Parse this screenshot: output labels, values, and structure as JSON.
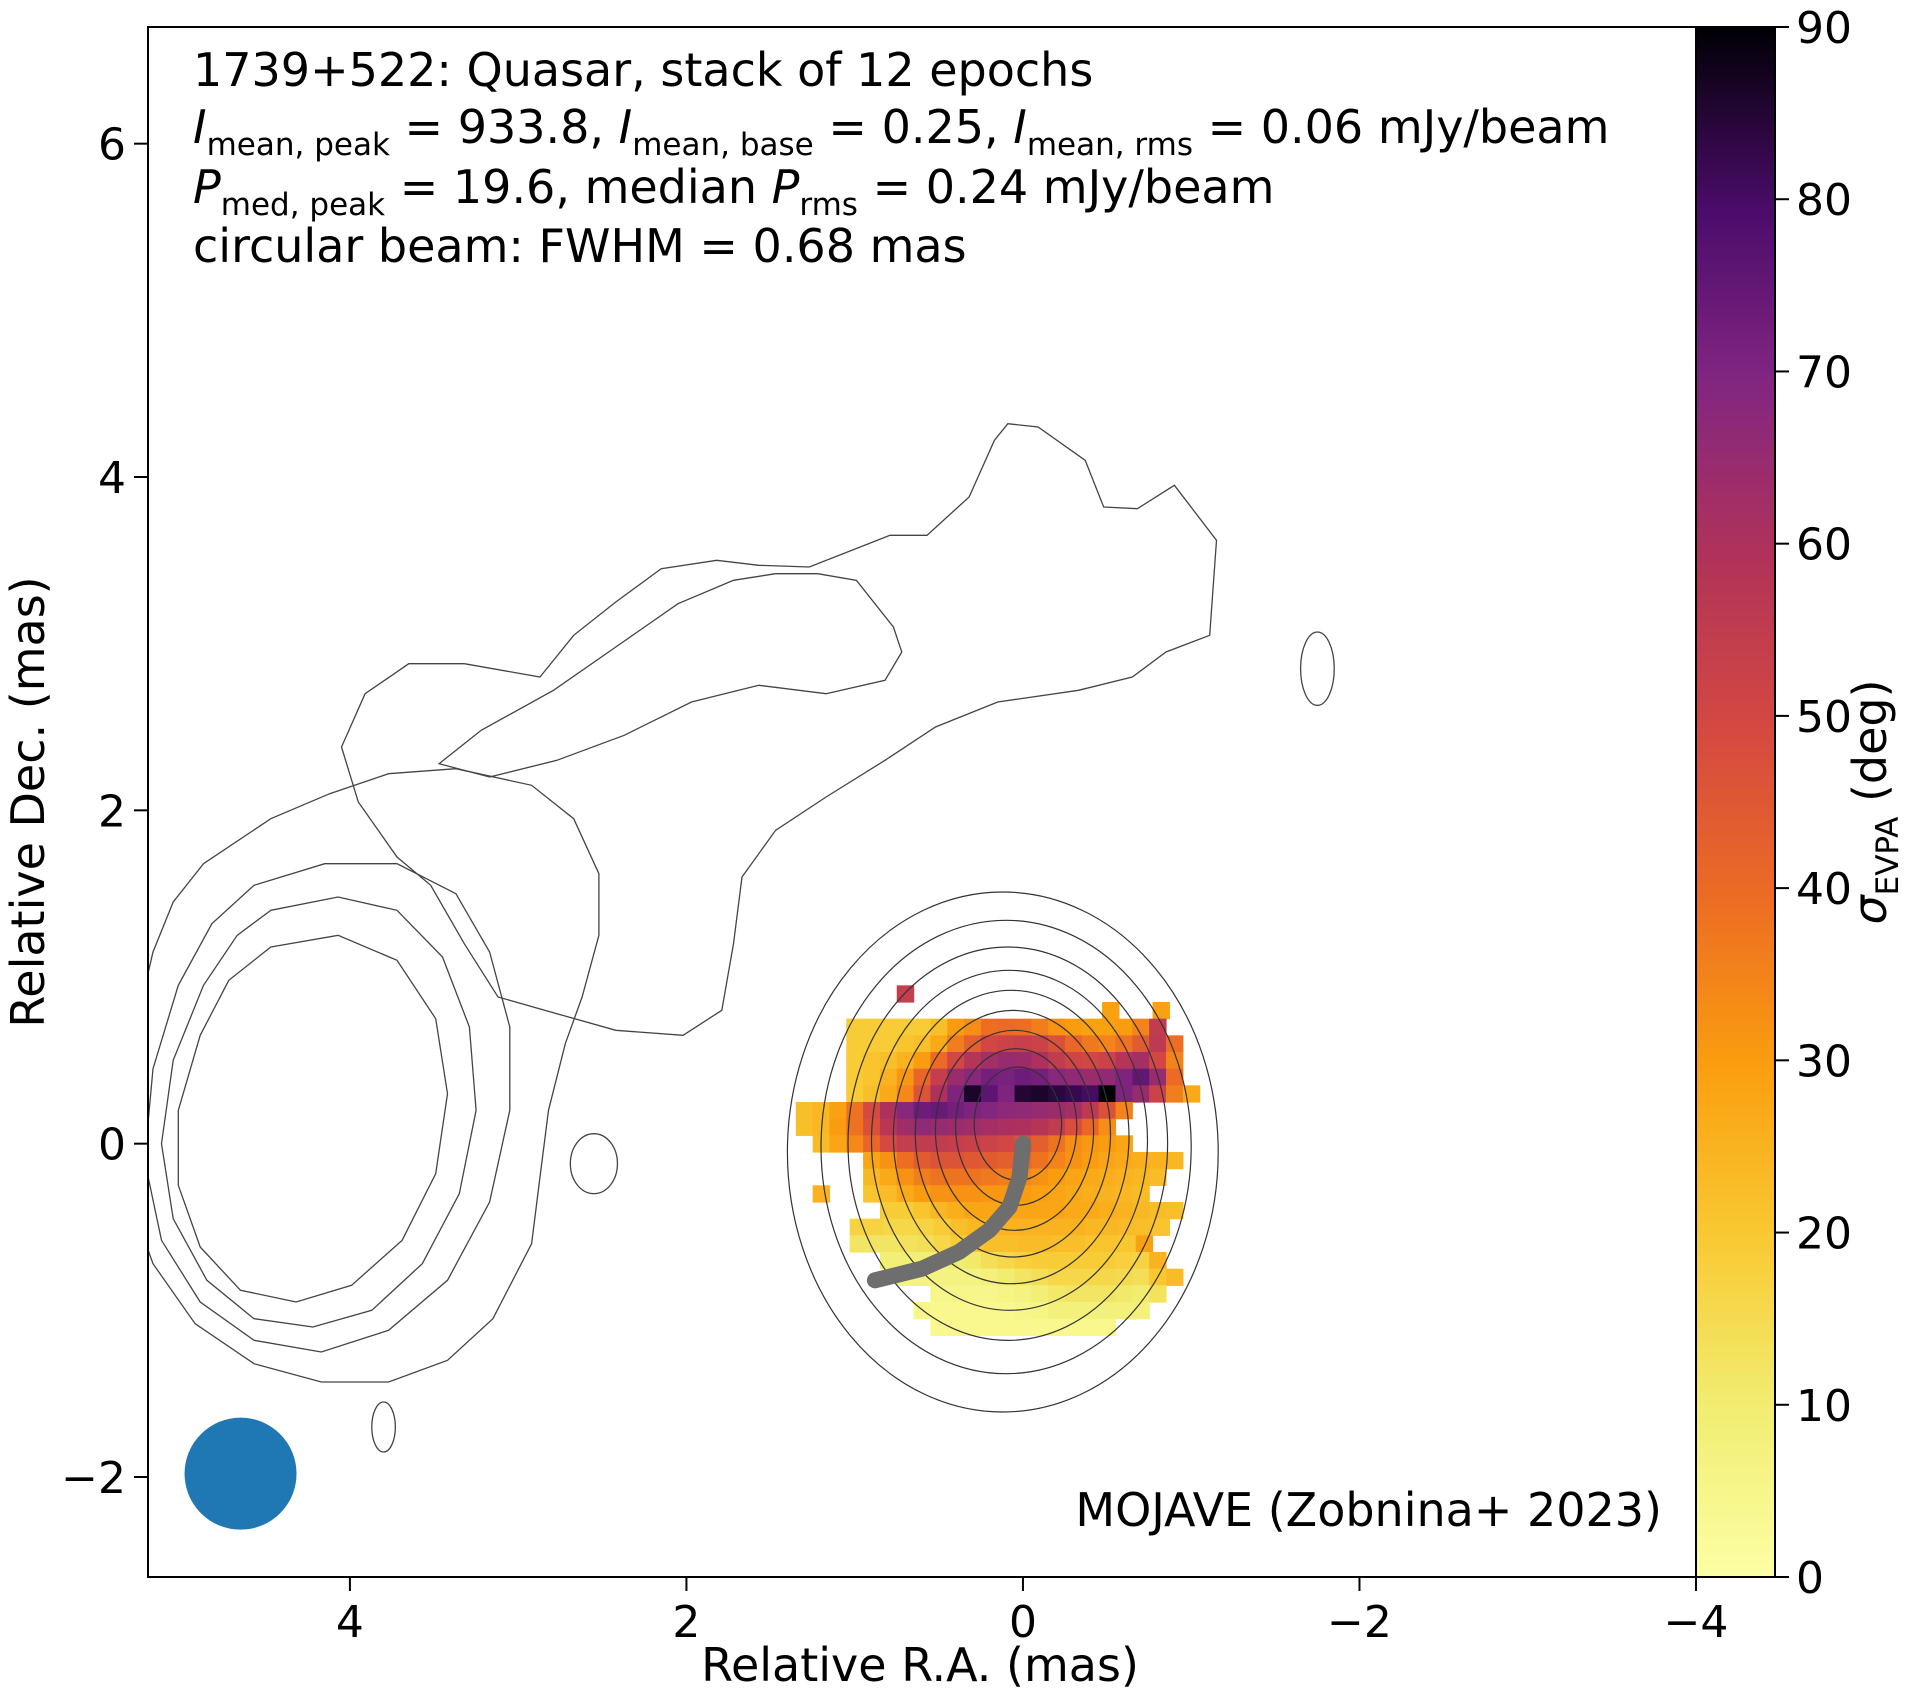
{
  "chart_data": {
    "type": "heatmap",
    "info_lines": [
      "1739+522: Quasar, stack of 12 epochs",
      "I_mean,peak = 933.8, I_mean,base = 0.25, I_mean,rms = 0.06 mJy/beam",
      "P_med,peak = 19.6, median P_rms = 0.24 mJy/beam",
      "circular beam: FWHM = 0.68 mas"
    ],
    "stats": {
      "source": "1739+522",
      "classification": "Quasar",
      "epochs": 12,
      "I_mean_peak": 933.8,
      "I_mean_base": 0.25,
      "I_mean_rms": 0.06,
      "P_med_peak": 19.6,
      "P_rms_median": 0.24,
      "beam_fwhm_mas": 0.68,
      "flux_unit": "mJy/beam"
    },
    "credit": "MOJAVE (Zobnina+ 2023)",
    "xlabel": "Relative R.A. (mas)",
    "ylabel": "Relative Dec. (mas)",
    "xlim": [
      5.2,
      -4.0
    ],
    "ylim": [
      -2.6,
      6.7
    ],
    "xticks": [
      4,
      2,
      0,
      -2,
      -4
    ],
    "yticks": [
      -2,
      0,
      2,
      4,
      6
    ],
    "colorbar": {
      "label": "σ_EVPA (deg)",
      "range": [
        0,
        90
      ],
      "ticks": [
        0,
        10,
        20,
        30,
        40,
        50,
        60,
        70,
        80,
        90
      ],
      "colormap": "inferno_r"
    },
    "beam": {
      "x": 4.65,
      "y": -1.98,
      "fwhm": 0.68,
      "color": "#1f77b4"
    },
    "ridge_line": {
      "color": "#6e6e6e",
      "points": [
        [
          0.0,
          0.0
        ],
        [
          0.02,
          -0.2
        ],
        [
          0.08,
          -0.38
        ],
        [
          0.2,
          -0.52
        ],
        [
          0.38,
          -0.65
        ],
        [
          0.6,
          -0.75
        ],
        [
          0.88,
          -0.82
        ]
      ]
    },
    "contours": [
      {
        "level": 1,
        "points": [
          [
            2.9,
            2.8
          ],
          [
            3.1,
            3.05
          ],
          [
            3.35,
            3.25
          ],
          [
            3.62,
            3.45
          ],
          [
            3.95,
            3.5
          ],
          [
            4.2,
            3.47
          ],
          [
            4.5,
            3.46
          ],
          [
            4.98,
            3.65
          ],
          [
            5.2,
            3.65
          ],
          [
            5.45,
            3.88
          ],
          [
            5.6,
            4.22
          ],
          [
            5.68,
            4.32
          ],
          [
            5.86,
            4.3
          ],
          [
            6.14,
            4.1
          ],
          [
            6.25,
            3.82
          ],
          [
            6.45,
            3.81
          ],
          [
            6.67,
            3.95
          ],
          [
            6.92,
            3.62
          ],
          [
            6.88,
            3.05
          ],
          [
            6.62,
            2.95
          ],
          [
            6.42,
            2.8
          ],
          [
            6.1,
            2.72
          ],
          [
            5.62,
            2.65
          ],
          [
            5.25,
            2.5
          ],
          [
            4.95,
            2.3
          ],
          [
            4.6,
            2.08
          ],
          [
            4.3,
            1.88
          ],
          [
            4.1,
            1.6
          ],
          [
            4.05,
            1.2
          ],
          [
            3.98,
            0.8
          ],
          [
            3.75,
            0.65
          ],
          [
            3.35,
            0.68
          ],
          [
            3.0,
            0.78
          ],
          [
            2.65,
            0.88
          ],
          [
            2.45,
            1.2
          ],
          [
            2.25,
            1.55
          ],
          [
            2.05,
            1.72
          ],
          [
            1.82,
            2.05
          ],
          [
            1.72,
            2.38
          ],
          [
            1.86,
            2.7
          ],
          [
            2.12,
            2.88
          ],
          [
            2.45,
            2.88
          ],
          [
            2.9,
            2.8
          ]
        ]
      },
      {
        "level": 2,
        "points": [
          [
            2.3,
            2.28
          ],
          [
            2.55,
            2.48
          ],
          [
            2.98,
            2.72
          ],
          [
            3.35,
            2.98
          ],
          [
            3.72,
            3.24
          ],
          [
            4.05,
            3.38
          ],
          [
            4.3,
            3.42
          ],
          [
            4.55,
            3.42
          ],
          [
            4.78,
            3.38
          ],
          [
            5.0,
            3.1
          ],
          [
            5.05,
            2.95
          ],
          [
            4.95,
            2.78
          ],
          [
            4.6,
            2.7
          ],
          [
            4.2,
            2.75
          ],
          [
            3.8,
            2.65
          ],
          [
            3.4,
            2.45
          ],
          [
            3.0,
            2.3
          ],
          [
            2.6,
            2.2
          ],
          [
            2.3,
            2.28
          ]
        ]
      },
      {
        "level": 2,
        "points": [
          [
            0.9,
            1.68
          ],
          [
            1.3,
            1.95
          ],
          [
            1.65,
            2.1
          ],
          [
            2.0,
            2.22
          ],
          [
            2.4,
            2.25
          ],
          [
            2.85,
            2.15
          ],
          [
            3.1,
            1.95
          ],
          [
            3.25,
            1.62
          ],
          [
            3.25,
            1.25
          ],
          [
            3.15,
            0.88
          ],
          [
            3.05,
            0.6
          ],
          [
            2.95,
            0.2
          ],
          [
            2.9,
            -0.2
          ],
          [
            2.85,
            -0.6
          ],
          [
            2.62,
            -1.05
          ],
          [
            2.35,
            -1.3
          ],
          [
            2.0,
            -1.43
          ],
          [
            1.6,
            -1.43
          ],
          [
            1.2,
            -1.32
          ],
          [
            0.85,
            -1.08
          ],
          [
            0.6,
            -0.72
          ],
          [
            0.45,
            -0.3
          ],
          [
            0.42,
            0.2
          ],
          [
            0.5,
            0.72
          ],
          [
            0.6,
            1.15
          ],
          [
            0.72,
            1.45
          ],
          [
            0.9,
            1.68
          ]
        ]
      },
      {
        "level": 3,
        "points": [
          [
            1.2,
            1.55
          ],
          [
            1.62,
            1.68
          ],
          [
            2.05,
            1.68
          ],
          [
            2.4,
            1.5
          ],
          [
            2.6,
            1.15
          ],
          [
            2.72,
            0.7
          ],
          [
            2.72,
            0.2
          ],
          [
            2.6,
            -0.35
          ],
          [
            2.35,
            -0.82
          ],
          [
            2.0,
            -1.12
          ],
          [
            1.6,
            -1.25
          ],
          [
            1.2,
            -1.18
          ],
          [
            0.88,
            -0.95
          ],
          [
            0.65,
            -0.58
          ],
          [
            0.55,
            -0.1
          ],
          [
            0.6,
            0.45
          ],
          [
            0.75,
            0.95
          ],
          [
            0.95,
            1.32
          ],
          [
            1.2,
            1.55
          ]
        ]
      },
      {
        "level": 4,
        "points": [
          [
            1.3,
            1.4
          ],
          [
            1.7,
            1.48
          ],
          [
            2.05,
            1.4
          ],
          [
            2.32,
            1.12
          ],
          [
            2.48,
            0.7
          ],
          [
            2.52,
            0.2
          ],
          [
            2.42,
            -0.3
          ],
          [
            2.2,
            -0.72
          ],
          [
            1.9,
            -1.0
          ],
          [
            1.55,
            -1.1
          ],
          [
            1.2,
            -1.05
          ],
          [
            0.92,
            -0.82
          ],
          [
            0.72,
            -0.45
          ],
          [
            0.65,
            0.0
          ],
          [
            0.72,
            0.5
          ],
          [
            0.9,
            0.95
          ],
          [
            1.1,
            1.25
          ],
          [
            1.3,
            1.4
          ]
        ]
      },
      {
        "level": 5,
        "points": [
          [
            1.3,
            1.18
          ],
          [
            1.7,
            1.25
          ],
          [
            2.05,
            1.1
          ],
          [
            2.28,
            0.75
          ],
          [
            2.35,
            0.3
          ],
          [
            2.28,
            -0.18
          ],
          [
            2.08,
            -0.58
          ],
          [
            1.78,
            -0.85
          ],
          [
            1.45,
            -0.95
          ],
          [
            1.12,
            -0.88
          ],
          [
            0.88,
            -0.62
          ],
          [
            0.75,
            -0.25
          ],
          [
            0.75,
            0.2
          ],
          [
            0.88,
            0.65
          ],
          [
            1.05,
            0.98
          ],
          [
            1.3,
            1.18
          ]
        ]
      }
    ],
    "contour_spans": [
      {
        "rx": 1.78,
        "ry": 2.55,
        "cx": 1.6,
        "cy": 0.55
      },
      {
        "rx": 1.48,
        "ry": 2.05,
        "cx": 1.55,
        "cy": 0.42
      }
    ],
    "contour_rings": [
      {
        "cx": 0.12,
        "cy": -0.05,
        "rx": 1.28,
        "ry": 1.56
      },
      {
        "cx": 0.1,
        "cy": -0.02,
        "rx": 1.1,
        "ry": 1.36
      },
      {
        "cx": 0.09,
        "cy": 0.0,
        "rx": 0.95,
        "ry": 1.18
      },
      {
        "cx": 0.08,
        "cy": 0.02,
        "rx": 0.82,
        "ry": 1.02
      },
      {
        "cx": 0.07,
        "cy": 0.04,
        "rx": 0.7,
        "ry": 0.88
      },
      {
        "cx": 0.06,
        "cy": 0.06,
        "rx": 0.58,
        "ry": 0.74
      },
      {
        "cx": 0.05,
        "cy": 0.08,
        "rx": 0.47,
        "ry": 0.6
      },
      {
        "cx": 0.04,
        "cy": 0.1,
        "rx": 0.36,
        "ry": 0.47
      },
      {
        "cx": 0.03,
        "cy": 0.12,
        "rx": 0.26,
        "ry": 0.34
      }
    ],
    "pixel_size_mas": 0.1,
    "pixel_rows": [
      {
        "y": 0.9,
        "x_start": 1.0,
        "values": [
          null,
          null,
          null,
          54
        ]
      },
      {
        "y": 0.8,
        "x_start": 0.98,
        "values": [
          null,
          null,
          null,
          null,
          null,
          null,
          null,
          null,
          null,
          null,
          null,
          null,
          null,
          null,
          null,
          29,
          null,
          null,
          29
        ]
      },
      {
        "y": 0.7,
        "x_start": 1.0,
        "values": [
          19,
          19,
          19,
          19,
          19,
          22,
          30,
          33,
          39,
          40,
          39,
          36,
          32,
          30,
          29,
          29,
          30,
          35,
          55
        ]
      },
      {
        "y": 0.6,
        "x_start": 1.0,
        "values": [
          19,
          19,
          19,
          21,
          22,
          27,
          36,
          43,
          50,
          52,
          53,
          52,
          47,
          41,
          37,
          35,
          38,
          44,
          56,
          39
        ]
      },
      {
        "y": 0.5,
        "x_start": 1.0,
        "values": [
          19,
          21,
          22,
          25,
          30,
          40,
          50,
          58,
          62,
          65,
          64,
          60,
          55,
          51,
          50,
          52,
          58,
          62,
          50,
          35
        ]
      },
      {
        "y": 0.4,
        "x_start": 1.0,
        "values": [
          19,
          21,
          25,
          31,
          41,
          54,
          64,
          68,
          72,
          71,
          73,
          72,
          68,
          66,
          64,
          66,
          70,
          75,
          65,
          40
        ]
      },
      {
        "y": 0.3,
        "x_start": 1.0,
        "values": [
          19,
          22,
          27,
          34,
          46,
          60,
          70,
          86,
          76,
          70,
          85,
          86,
          84,
          82,
          80,
          90,
          70,
          65,
          52,
          36,
          27
        ]
      },
      {
        "y": 0.2,
        "x_start": 1.3,
        "values": [
          22,
          24,
          29,
          38,
          49,
          60,
          68,
          73,
          74,
          72,
          70,
          69,
          67,
          66,
          65,
          64,
          62,
          56,
          47,
          35
        ]
      },
      {
        "y": 0.1,
        "x_start": 1.3,
        "values": [
          22,
          24,
          30,
          38,
          47,
          57,
          63,
          66,
          65,
          64,
          63,
          62,
          61,
          60,
          58,
          55,
          48,
          41,
          33
        ]
      },
      {
        "y": 0.0,
        "x_start": 1.3,
        "values": [
          null,
          23,
          28,
          34,
          41,
          49,
          54,
          55,
          55,
          54,
          53,
          52,
          50,
          47,
          43,
          38,
          33,
          31,
          30,
          28
        ]
      },
      {
        "y": -0.1,
        "x_start": 1.2,
        "values": [
          null,
          null,
          null,
          28,
          32,
          39,
          44,
          46,
          46,
          45,
          44,
          43,
          41,
          38,
          35,
          32,
          30,
          28,
          27,
          26,
          25,
          24
        ]
      },
      {
        "y": -0.2,
        "x_start": 1.2,
        "values": [
          null,
          null,
          null,
          24,
          27,
          32,
          36,
          38,
          38,
          38,
          37,
          36,
          34,
          32,
          30,
          28,
          27,
          26,
          25,
          24,
          23
        ]
      },
      {
        "y": -0.3,
        "x_start": 1.2,
        "values": [
          25,
          null,
          null,
          21,
          23,
          27,
          30,
          32,
          32,
          32,
          31,
          31,
          30,
          29,
          28,
          27,
          26,
          25,
          24,
          23
        ]
      },
      {
        "y": -0.4,
        "x_start": 1.0,
        "values": [
          null,
          null,
          19,
          19,
          21,
          24,
          26,
          28,
          28,
          28,
          28,
          28,
          28,
          27,
          27,
          26,
          25,
          24,
          23,
          22
        ]
      },
      {
        "y": -0.5,
        "x_start": 0.98,
        "values": [
          17,
          17,
          16,
          16,
          17,
          19,
          22,
          24,
          25,
          25,
          25,
          25,
          25,
          25,
          24,
          24,
          23,
          22,
          21
        ]
      },
      {
        "y": -0.6,
        "x_start": 0.98,
        "values": [
          12,
          12,
          12,
          13,
          14,
          16,
          19,
          21,
          22,
          22,
          23,
          23,
          22,
          22,
          21,
          21,
          20,
          29
        ]
      },
      {
        "y": -0.7,
        "x_start": 0.8,
        "values": [
          9,
          9,
          9,
          9,
          10,
          11,
          14,
          16,
          18,
          19,
          19,
          19,
          19,
          19,
          18,
          17,
          25
        ]
      },
      {
        "y": -0.8,
        "x_start": 0.7,
        "values": [
          7,
          7,
          7,
          7,
          7,
          8,
          10,
          12,
          14,
          16,
          16,
          16,
          16,
          15,
          14,
          20,
          23
        ]
      },
      {
        "y": -0.9,
        "x_start": 0.7,
        "values": [
          null,
          null,
          5,
          5,
          5,
          5,
          6,
          7,
          9,
          11,
          12,
          12,
          12,
          11,
          10,
          13
        ]
      },
      {
        "y": -1.0,
        "x_start": 0.7,
        "values": [
          null,
          5,
          4,
          4,
          4,
          4,
          4,
          5,
          6,
          8,
          8,
          8,
          8,
          8,
          8
        ]
      },
      {
        "y": -1.1,
        "x_start": 0.7,
        "values": [
          null,
          null,
          4,
          4,
          4,
          4,
          4,
          4,
          4,
          4,
          4,
          4,
          4
        ]
      }
    ]
  }
}
